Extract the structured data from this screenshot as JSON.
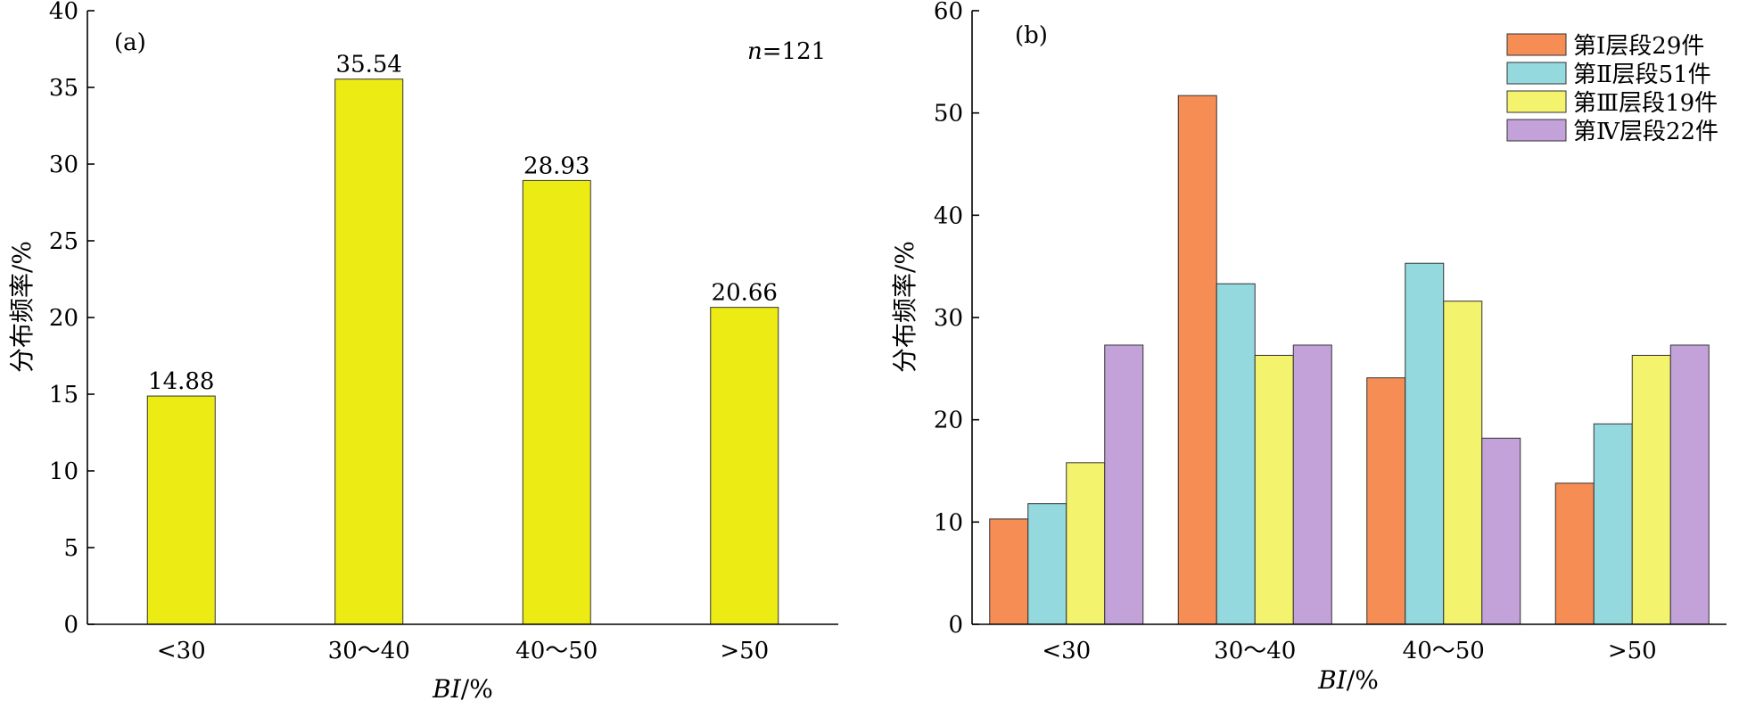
{
  "chart_data": [
    {
      "type": "bar",
      "panel_label": "(a)",
      "annotation": {
        "n_symbol": "n",
        "n_value": "=121"
      },
      "categories": [
        "<30",
        "30～40",
        "40～50",
        ">50"
      ],
      "values": [
        14.88,
        35.54,
        28.93,
        20.66
      ],
      "data_labels": [
        "14.88",
        "35.54",
        "28.93",
        "20.66"
      ],
      "xlabel": {
        "italic_part": "BI",
        "rest": "/%"
      },
      "ylabel": "分布频率/%",
      "ylim": [
        0,
        40
      ],
      "yticks": [
        0,
        5,
        10,
        15,
        20,
        25,
        30,
        35,
        40
      ],
      "grid": false,
      "color": "#ecec14"
    },
    {
      "type": "bar",
      "panel_label": "(b)",
      "categories": [
        "<30",
        "30～40",
        "40～50",
        ">50"
      ],
      "series": [
        {
          "name": "第Ⅰ层段29件",
          "values": [
            10.3,
            51.7,
            24.1,
            13.8
          ],
          "color": "#f68d55"
        },
        {
          "name": "第Ⅱ层段51件",
          "values": [
            11.8,
            33.3,
            35.3,
            19.6
          ],
          "color": "#93d9de"
        },
        {
          "name": "第Ⅲ层段19件",
          "values": [
            15.8,
            26.3,
            31.6,
            26.3
          ],
          "color": "#f4f36d"
        },
        {
          "name": "第Ⅳ层段22件",
          "values": [
            27.3,
            27.3,
            18.2,
            27.3
          ],
          "color": "#c3a2d9"
        }
      ],
      "xlabel": {
        "italic_part": "BI",
        "rest": "/%"
      },
      "ylabel": "分布频率/%",
      "ylim": [
        0,
        60
      ],
      "yticks": [
        0,
        10,
        20,
        30,
        40,
        50,
        60
      ],
      "grid": false,
      "legend_position": "top-right"
    }
  ]
}
